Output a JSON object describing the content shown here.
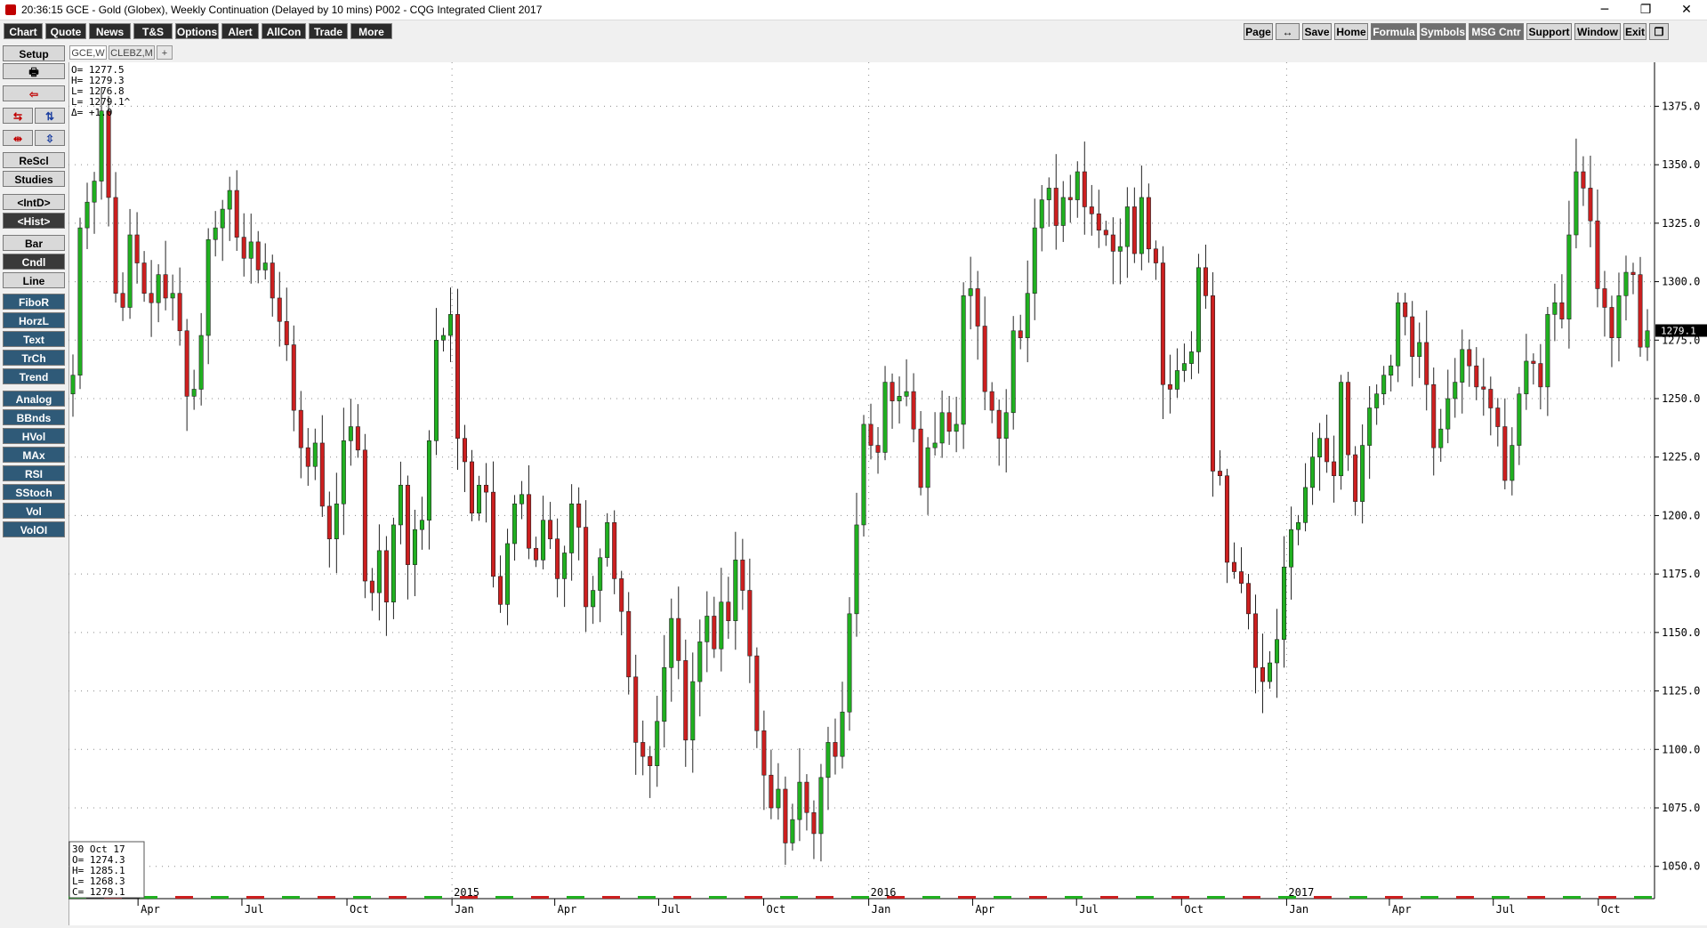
{
  "window": {
    "title": "20:36:15  GCE - Gold (Globex), Weekly Continuation (Delayed by 10 mins)  P002 - CQG Integrated Client 2017",
    "minimize_glyph": "─",
    "restore_glyph": "❐",
    "close_glyph": "✕"
  },
  "menu": {
    "left": [
      "Chart",
      "Quote",
      "News",
      "T&S",
      "Options",
      "Alert",
      "AllCon",
      "Trade",
      "More"
    ],
    "right": [
      "Page",
      "↔",
      "Save",
      "Home",
      "Formula",
      "Symbols",
      "MSG Cntr",
      "Support",
      "Window",
      "Exit",
      "❐"
    ]
  },
  "toolbar": {
    "setup": "Setup",
    "print_icon": "🖶",
    "exit_icon": "⇦",
    "zoom_left_icons": [
      "⇆",
      "⇅"
    ],
    "zoom_right_icons": [
      "⇹",
      "⇳"
    ],
    "buttons_a": [
      "ReScl",
      "Studies",
      "<IntD>",
      "<Hist>"
    ],
    "buttons_b": [
      "Bar",
      "Cndl",
      "Line"
    ],
    "studies": [
      "FiboR",
      "HorzL",
      "Text",
      "TrCh",
      "Trend",
      "Analog",
      "BBnds",
      "HVol",
      "MAx",
      "RSI",
      "SStoch",
      "Vol",
      "VolOI"
    ]
  },
  "tabs": [
    "GCE,W",
    "CLEBZ,M",
    "+"
  ],
  "ohlc_top": [
    "O=  1277.5",
    "H=  1279.3",
    "L=  1276.8",
    "L=  1279.1^",
    "Δ=   +1.0"
  ],
  "ohlc_bottom": [
    "30 Oct 17",
    "O=   1274.3",
    "H=   1285.1",
    "L=   1268.3",
    "C=   1279.1"
  ],
  "last_price": "1279.1",
  "colors": {
    "up": "#20b020",
    "down": "#cc1f1f",
    "wick": "#222222",
    "grid": "#8c8c8c",
    "background": "#ffffff",
    "price_tag": "#000000"
  },
  "chart_data": {
    "type": "candlestick",
    "symbol": "GCE",
    "interval": "weekly",
    "ylim": [
      1040,
      1390
    ],
    "y_ticks": [
      1050,
      1075,
      1100,
      1125,
      1150,
      1175,
      1200,
      1225,
      1250,
      1275,
      1300,
      1325,
      1350,
      1375
    ],
    "y_tick_labels": [
      "1050.0",
      "1075.0",
      "1100.0",
      "1125.0",
      "1150.0",
      "1175.0",
      "1200.0",
      "1225.0",
      "1250.0",
      "1275.0",
      "1300.0",
      "1325.0",
      "1350.0",
      "1375.0"
    ],
    "x_start": "2014-02-03",
    "x_end": "2017-11-13",
    "month_labels": [
      {
        "label": "Apr",
        "date": "2014-04-01"
      },
      {
        "label": "Jul",
        "date": "2014-07-01"
      },
      {
        "label": "Oct",
        "date": "2014-10-01"
      },
      {
        "label": "Jan",
        "date": "2015-01-01"
      },
      {
        "label": "Apr",
        "date": "2015-04-01"
      },
      {
        "label": "Jul",
        "date": "2015-07-01"
      },
      {
        "label": "Oct",
        "date": "2015-10-01"
      },
      {
        "label": "Jan",
        "date": "2016-01-01"
      },
      {
        "label": "Apr",
        "date": "2016-04-01"
      },
      {
        "label": "Jul",
        "date": "2016-07-01"
      },
      {
        "label": "Oct",
        "date": "2016-10-01"
      },
      {
        "label": "Jan",
        "date": "2017-01-01"
      },
      {
        "label": "Apr",
        "date": "2017-04-01"
      },
      {
        "label": "Jul",
        "date": "2017-07-01"
      },
      {
        "label": "Oct",
        "date": "2017-10-01"
      }
    ],
    "year_labels": [
      {
        "label": "2015",
        "date": "2015-01-01"
      },
      {
        "label": "2016",
        "date": "2016-01-01"
      },
      {
        "label": "2017",
        "date": "2017-01-01"
      }
    ],
    "closes": [
      1260,
      1323,
      1334,
      1343,
      1373,
      1336,
      1295,
      1289,
      1320,
      1308,
      1295,
      1291,
      1303,
      1293,
      1295,
      1279,
      1251,
      1254,
      1277,
      1318,
      1323,
      1331,
      1339,
      1319,
      1310,
      1317,
      1305,
      1308,
      1293,
      1283,
      1273,
      1245,
      1229,
      1221,
      1231,
      1204,
      1190,
      1205,
      1232,
      1238,
      1228,
      1172,
      1167,
      1185,
      1163,
      1196,
      1213,
      1179,
      1194,
      1198,
      1232,
      1275,
      1277,
      1286,
      1233,
      1223,
      1201,
      1213,
      1210,
      1174,
      1162,
      1188,
      1205,
      1209,
      1186,
      1181,
      1198,
      1190,
      1173,
      1184,
      1205,
      1195,
      1161,
      1168,
      1182,
      1197,
      1173,
      1159,
      1131,
      1103,
      1097,
      1093,
      1112,
      1135,
      1156,
      1138,
      1104,
      1129,
      1146,
      1157,
      1143,
      1163,
      1155,
      1181,
      1168,
      1140,
      1108,
      1089,
      1075,
      1083,
      1060,
      1070,
      1086,
      1073,
      1064,
      1088,
      1103,
      1097,
      1116,
      1158,
      1196,
      1239,
      1230,
      1227,
      1257,
      1249,
      1251,
      1253,
      1237,
      1212,
      1229,
      1231,
      1244,
      1236,
      1239,
      1294,
      1297,
      1281,
      1253,
      1245,
      1233,
      1244,
      1279,
      1276,
      1295,
      1323,
      1335,
      1340,
      1324,
      1336,
      1335,
      1347,
      1332,
      1329,
      1322,
      1320,
      1313,
      1315,
      1332,
      1312,
      1336,
      1314,
      1308,
      1256,
      1254,
      1262,
      1265,
      1270,
      1306,
      1294,
      1219,
      1217,
      1180,
      1176,
      1171,
      1158,
      1135,
      1129,
      1137,
      1147,
      1178,
      1194,
      1197,
      1212,
      1225,
      1233,
      1223,
      1217,
      1257,
      1226,
      1206,
      1230,
      1246,
      1252,
      1260,
      1264,
      1291,
      1285,
      1268,
      1274,
      1256,
      1229,
      1237,
      1250,
      1257,
      1271,
      1264,
      1255,
      1254,
      1246,
      1238,
      1215,
      1230,
      1252,
      1266,
      1265,
      1255,
      1286,
      1291,
      1284,
      1320,
      1347,
      1340,
      1326,
      1297,
      1289,
      1276,
      1294,
      1304,
      1303,
      1272,
      1279
    ]
  }
}
